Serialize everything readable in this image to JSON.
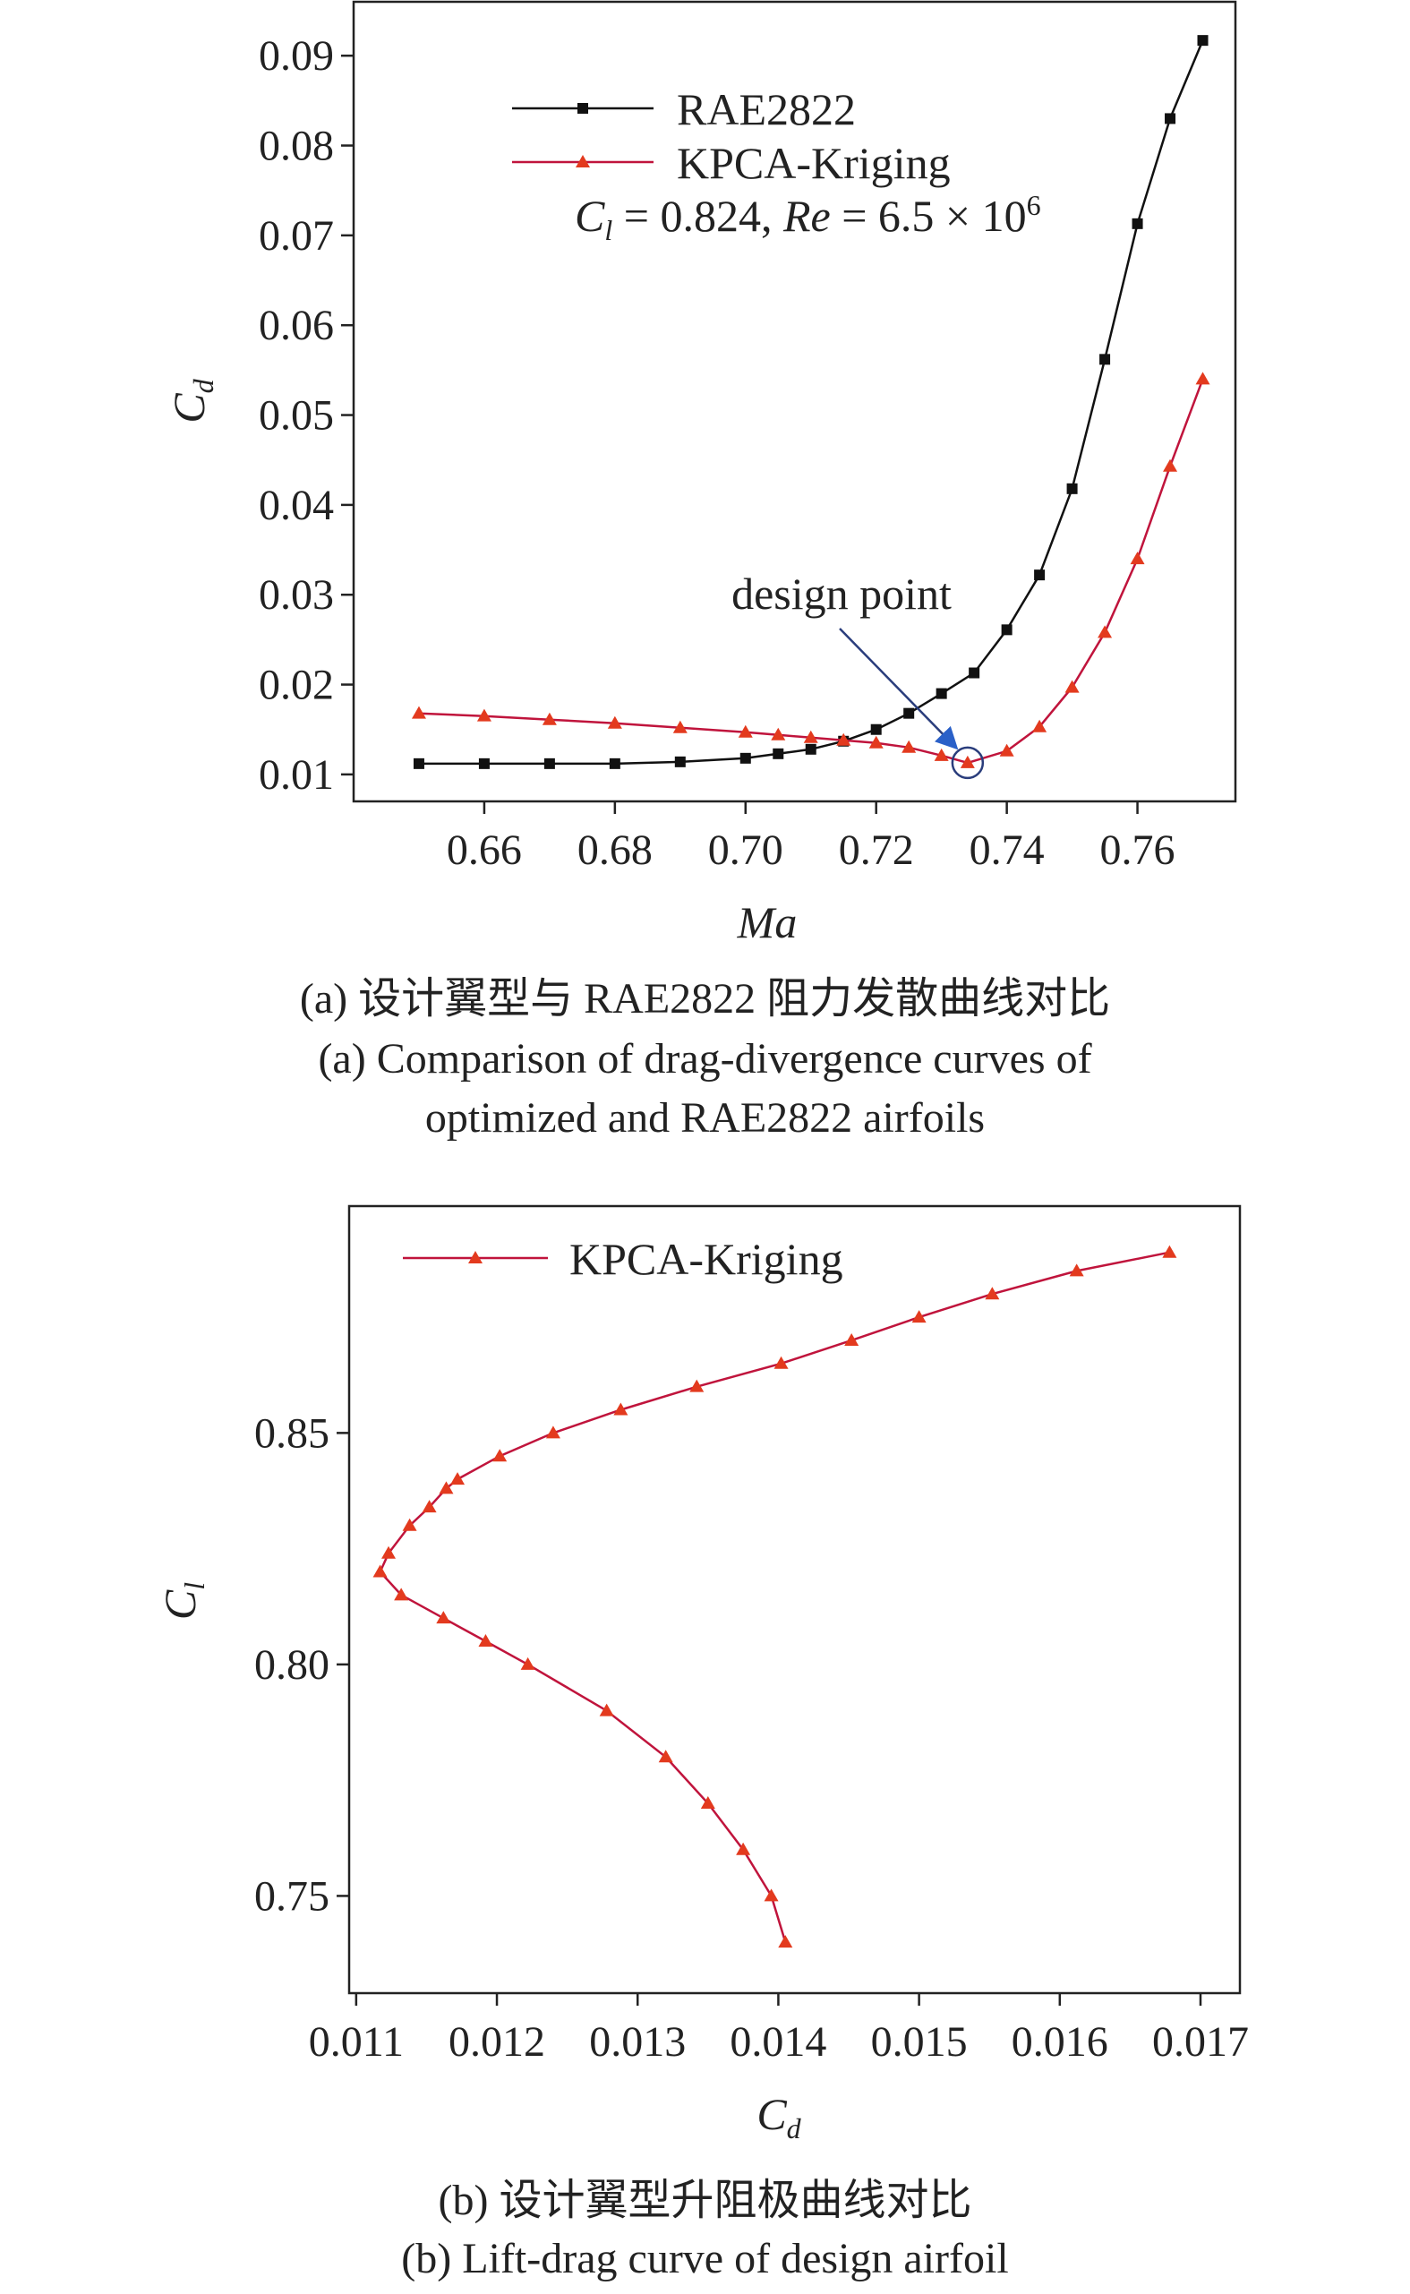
{
  "chart_data": [
    {
      "type": "line",
      "xlabel": "Ma",
      "ylabel": "C_d",
      "xlim": [
        0.64,
        0.775
      ],
      "ylim": [
        0.007,
        0.096
      ],
      "xticks": [
        0.66,
        0.68,
        0.7,
        0.72,
        0.74,
        0.76
      ],
      "xtick_labels": [
        "0.66",
        "0.68",
        "0.70",
        "0.72",
        "0.74",
        "0.76"
      ],
      "yticks": [
        0.01,
        0.02,
        0.03,
        0.04,
        0.05,
        0.06,
        0.07,
        0.08,
        0.09
      ],
      "ytick_labels": [
        "0.01",
        "0.02",
        "0.03",
        "0.04",
        "0.05",
        "0.06",
        "0.07",
        "0.08",
        "0.09"
      ],
      "legend_position": "top-center",
      "condition_label": "C_l = 0.824, Re = 6.5 × 10^6",
      "condition_parts": {
        "cl": "C",
        "cl_sub": "l",
        "cl_val": " = 0.824, ",
        "re": "Re",
        "re_val": " = 6.5 × 10",
        "re_exp": "6"
      },
      "annotation": {
        "text": "design point",
        "x": 0.734,
        "y": 0.0113
      },
      "series": [
        {
          "name": "RAE2822",
          "color": "#111111",
          "marker": "square",
          "x": [
            0.65,
            0.66,
            0.67,
            0.68,
            0.69,
            0.7,
            0.705,
            0.71,
            0.715,
            0.72,
            0.725,
            0.73,
            0.735,
            0.74,
            0.745,
            0.75,
            0.755,
            0.76,
            0.765,
            0.77
          ],
          "y": [
            0.0112,
            0.0112,
            0.0112,
            0.0112,
            0.0114,
            0.0118,
            0.0123,
            0.0128,
            0.0137,
            0.015,
            0.0168,
            0.019,
            0.0213,
            0.0261,
            0.0322,
            0.0418,
            0.0562,
            0.0713,
            0.083,
            0.0917
          ]
        },
        {
          "name": "KPCA-Kriging",
          "color": "#c0143c",
          "marker_color": "#e33a1e",
          "marker": "triangle",
          "x": [
            0.65,
            0.66,
            0.67,
            0.68,
            0.69,
            0.7,
            0.705,
            0.71,
            0.715,
            0.72,
            0.725,
            0.73,
            0.734,
            0.74,
            0.745,
            0.75,
            0.755,
            0.76,
            0.765,
            0.77
          ],
          "y": [
            0.0168,
            0.0165,
            0.0161,
            0.0157,
            0.0152,
            0.0147,
            0.0144,
            0.0141,
            0.0138,
            0.0135,
            0.013,
            0.0121,
            0.0113,
            0.0126,
            0.0153,
            0.0197,
            0.0258,
            0.034,
            0.0443,
            0.054
          ]
        }
      ]
    },
    {
      "type": "line",
      "xlabel": "C_d",
      "ylabel": "C_l",
      "xlim": [
        0.01095,
        0.01728
      ],
      "ylim": [
        0.729,
        0.899
      ],
      "xticks": [
        0.011,
        0.012,
        0.013,
        0.014,
        0.015,
        0.016,
        0.017
      ],
      "xtick_labels": [
        "0.011",
        "0.012",
        "0.013",
        "0.014",
        "0.015",
        "0.016",
        "0.017"
      ],
      "yticks": [
        0.75,
        0.8,
        0.85
      ],
      "ytick_labels": [
        "0.75",
        "0.80",
        "0.85"
      ],
      "legend_position": "top-left",
      "series": [
        {
          "name": "KPCA-Kriging",
          "color": "#c0143c",
          "marker_color": "#e33a1e",
          "marker": "triangle",
          "x": [
            0.01405,
            0.01395,
            0.01375,
            0.0135,
            0.0132,
            0.01278,
            0.01222,
            0.01192,
            0.01162,
            0.01132,
            0.01117,
            0.01123,
            0.01138,
            0.01152,
            0.01164,
            0.01172,
            0.01202,
            0.0124,
            0.01288,
            0.01342,
            0.01402,
            0.01452,
            0.015,
            0.01552,
            0.01612,
            0.01678
          ],
          "y": [
            0.74,
            0.75,
            0.76,
            0.77,
            0.78,
            0.79,
            0.8,
            0.805,
            0.81,
            0.815,
            0.82,
            0.824,
            0.83,
            0.834,
            0.838,
            0.84,
            0.845,
            0.85,
            0.855,
            0.86,
            0.865,
            0.87,
            0.875,
            0.88,
            0.885,
            0.889
          ]
        }
      ]
    }
  ],
  "captions": {
    "a_cn": "(a) 设计翼型与 RAE2822 阻力发散曲线对比",
    "a_en_1": "(a) Comparison of drag-divergence curves of",
    "a_en_2": "optimized and RAE2822 airfoils",
    "b_cn": "(b) 设计翼型升阻极曲线对比",
    "b_en": "(b) Lift-drag curve of design airfoil"
  }
}
